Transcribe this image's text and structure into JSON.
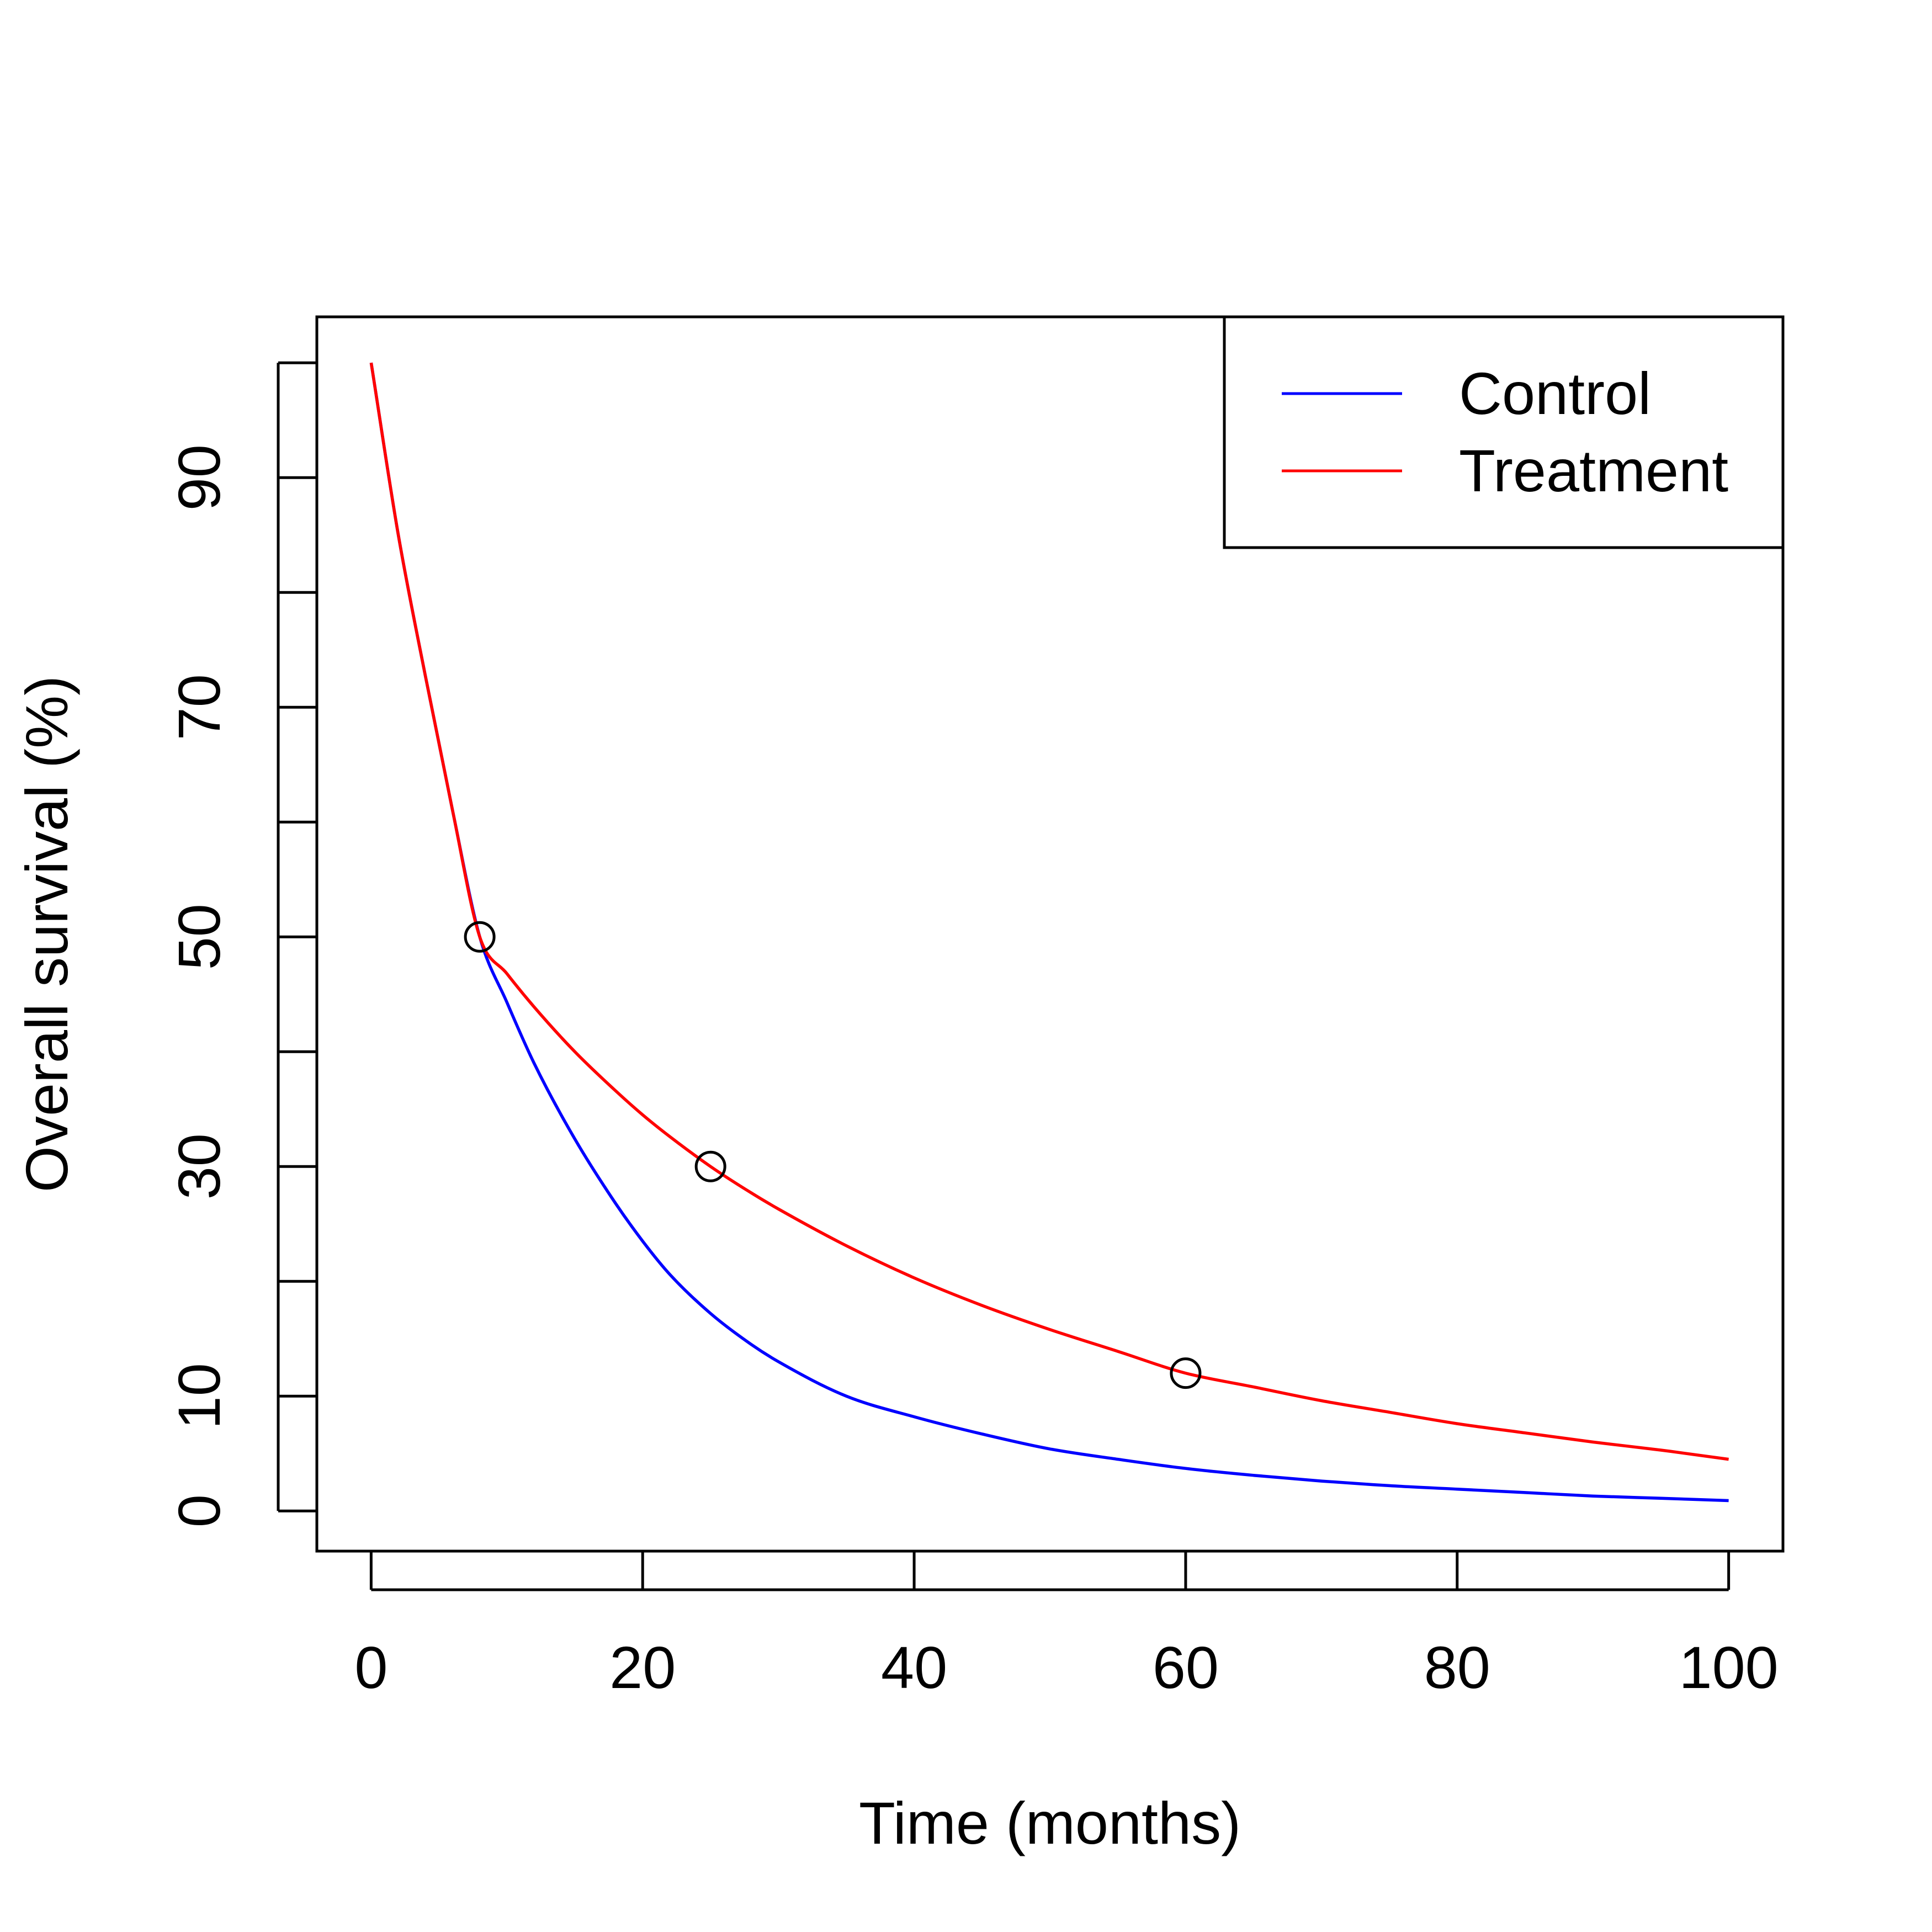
{
  "chart_data": {
    "type": "line",
    "title": "",
    "xlabel": "Time (months)",
    "ylabel": "Overall survival (%)",
    "xlim": [
      -4,
      104
    ],
    "ylim": [
      -3.5,
      104
    ],
    "x_ticks": [
      0,
      20,
      40,
      60,
      80,
      100
    ],
    "x_tick_labels": [
      "0",
      "20",
      "40",
      "60",
      "80",
      "100"
    ],
    "y_ticks": [
      0,
      10,
      20,
      30,
      40,
      50,
      60,
      70,
      80,
      90,
      100
    ],
    "y_tick_labels": [
      "0",
      "10",
      "",
      "30",
      "",
      "50",
      "",
      "70",
      "",
      "90",
      ""
    ],
    "grid": false,
    "legend_position": "top-right",
    "series": [
      {
        "name": "Control",
        "color": "#0000FF",
        "x": [
          0,
          2,
          4,
          6,
          8,
          10,
          12,
          15,
          18,
          20,
          22,
          25,
          28,
          30,
          35,
          40,
          45,
          50,
          55,
          60,
          65,
          70,
          75,
          80,
          85,
          90,
          95,
          100
        ],
        "y": [
          100,
          85,
          72.7,
          61,
          50,
          44.3,
          39,
          32.4,
          26.8,
          23.5,
          20.6,
          17.2,
          14.5,
          13,
          10,
          8.2,
          6.7,
          5.4,
          4.5,
          3.7,
          3.1,
          2.6,
          2.2,
          1.9,
          1.6,
          1.3,
          1.1,
          0.9
        ]
      },
      {
        "name": "Treatment",
        "color": "#FF0000",
        "x": [
          0,
          2,
          4,
          6,
          8,
          10,
          12,
          15,
          18,
          20,
          22,
          25,
          28,
          30,
          35,
          40,
          45,
          50,
          55,
          60,
          65,
          70,
          75,
          80,
          85,
          90,
          95,
          100
        ],
        "y": [
          100,
          85,
          72.7,
          61,
          50,
          46.8,
          43.9,
          40,
          36.6,
          34.5,
          32.6,
          30,
          27.7,
          26.3,
          23.1,
          20.3,
          17.9,
          15.8,
          13.9,
          12,
          10.8,
          9.6,
          8.6,
          7.6,
          6.8,
          6,
          5.3,
          4.5
        ]
      }
    ],
    "points": [
      {
        "x": 8,
        "y": 50
      },
      {
        "x": 25,
        "y": 30
      },
      {
        "x": 60,
        "y": 12
      }
    ]
  }
}
